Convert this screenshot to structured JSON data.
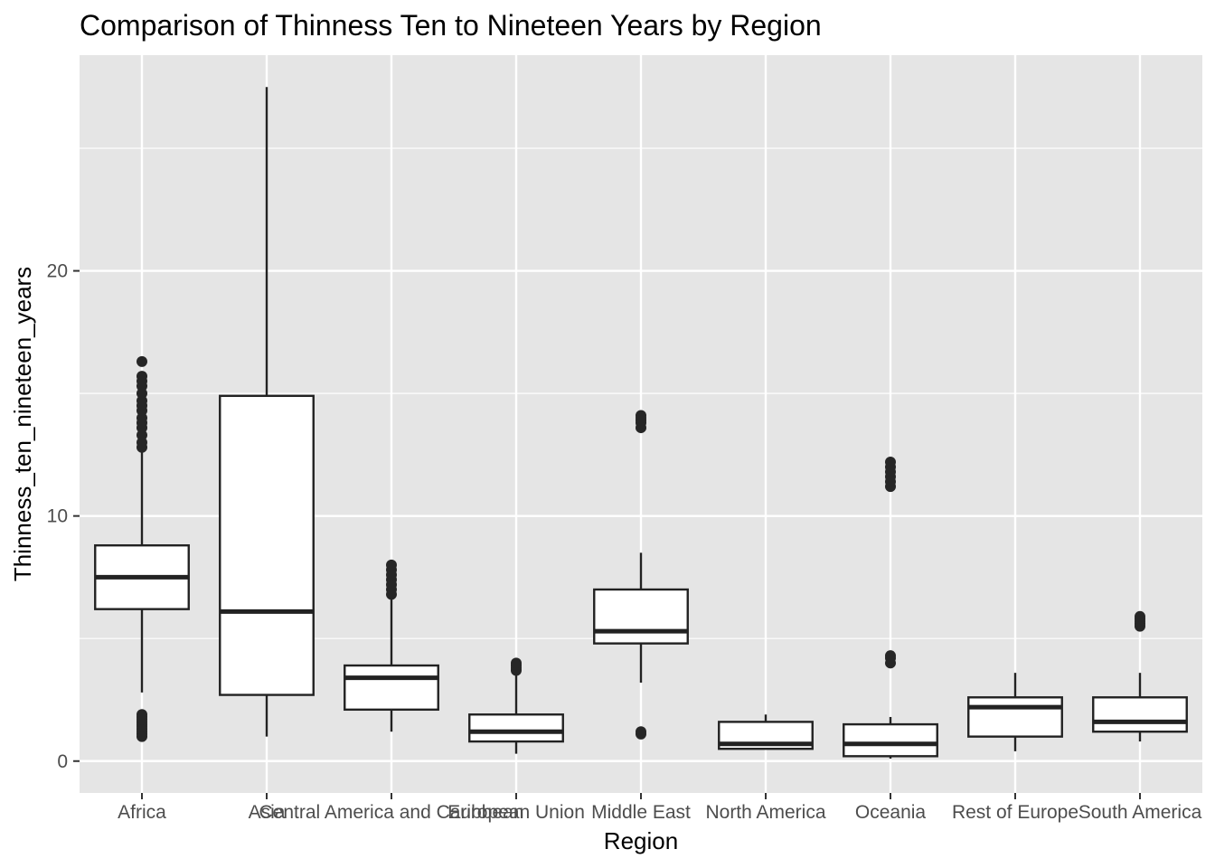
{
  "chart_data": {
    "type": "boxplot",
    "title": "Comparison of Thinness Ten to Nineteen Years by Region",
    "xlabel": "Region",
    "ylabel": "Thinness_ten_nineteen_years",
    "ylim": [
      -1.3,
      28.8
    ],
    "yticks": [
      0,
      10,
      20
    ],
    "grid": true,
    "colors": {
      "panel": "#e5e5e5",
      "grid": "#ffffff",
      "box_fill": "#ffffff",
      "box_line": "#222222",
      "outlier": "#262626"
    },
    "categories": [
      "Africa",
      "Asia",
      "Central America and Caribbean",
      "European Union",
      "Middle East",
      "North America",
      "Oceania",
      "Rest of Europe",
      "South America"
    ],
    "boxes": [
      {
        "category": "Africa",
        "whisker_low": 2.8,
        "q1": 6.2,
        "median": 7.5,
        "q3": 8.8,
        "whisker_high": 12.7,
        "outliers": [
          12.8,
          13.0,
          13.3,
          13.6,
          13.8,
          14.0,
          14.3,
          14.5,
          14.7,
          15.0,
          15.3,
          15.5,
          15.7,
          16.3,
          1.0,
          1.1,
          1.2,
          1.3,
          1.4,
          1.5,
          1.6,
          1.7,
          1.8,
          1.9
        ]
      },
      {
        "category": "Asia",
        "whisker_low": 1.0,
        "q1": 2.7,
        "median": 6.1,
        "q3": 14.9,
        "whisker_high": 27.5,
        "outliers": []
      },
      {
        "category": "Central America and Caribbean",
        "whisker_low": 1.2,
        "q1": 2.1,
        "median": 3.4,
        "q3": 3.9,
        "whisker_high": 6.6,
        "outliers": [
          6.8,
          7.0,
          7.2,
          7.4,
          7.6,
          7.8,
          8.0
        ]
      },
      {
        "category": "European Union",
        "whisker_low": 0.3,
        "q1": 0.8,
        "median": 1.2,
        "q3": 1.9,
        "whisker_high": 3.5,
        "outliers": [
          3.7,
          3.8,
          3.9,
          4.0
        ]
      },
      {
        "category": "Middle East",
        "whisker_low": 3.2,
        "q1": 4.8,
        "median": 5.3,
        "q3": 7.0,
        "whisker_high": 8.5,
        "outliers": [
          13.6,
          13.8,
          13.9,
          14.0,
          14.1,
          1.1,
          1.2
        ]
      },
      {
        "category": "North America",
        "whisker_low": 0.5,
        "q1": 0.5,
        "median": 0.7,
        "q3": 1.6,
        "whisker_high": 1.9,
        "outliers": []
      },
      {
        "category": "Oceania",
        "whisker_low": 0.1,
        "q1": 0.2,
        "median": 0.7,
        "q3": 1.5,
        "whisker_high": 1.8,
        "outliers": [
          11.2,
          11.4,
          11.6,
          11.8,
          12.0,
          12.2,
          4.0,
          4.2,
          4.3
        ]
      },
      {
        "category": "Rest of Europe",
        "whisker_low": 0.4,
        "q1": 1.0,
        "median": 2.2,
        "q3": 2.6,
        "whisker_high": 3.6,
        "outliers": []
      },
      {
        "category": "South America",
        "whisker_low": 0.8,
        "q1": 1.2,
        "median": 1.6,
        "q3": 2.6,
        "whisker_high": 3.6,
        "outliers": [
          5.5,
          5.6,
          5.7,
          5.8,
          5.9
        ]
      }
    ]
  }
}
